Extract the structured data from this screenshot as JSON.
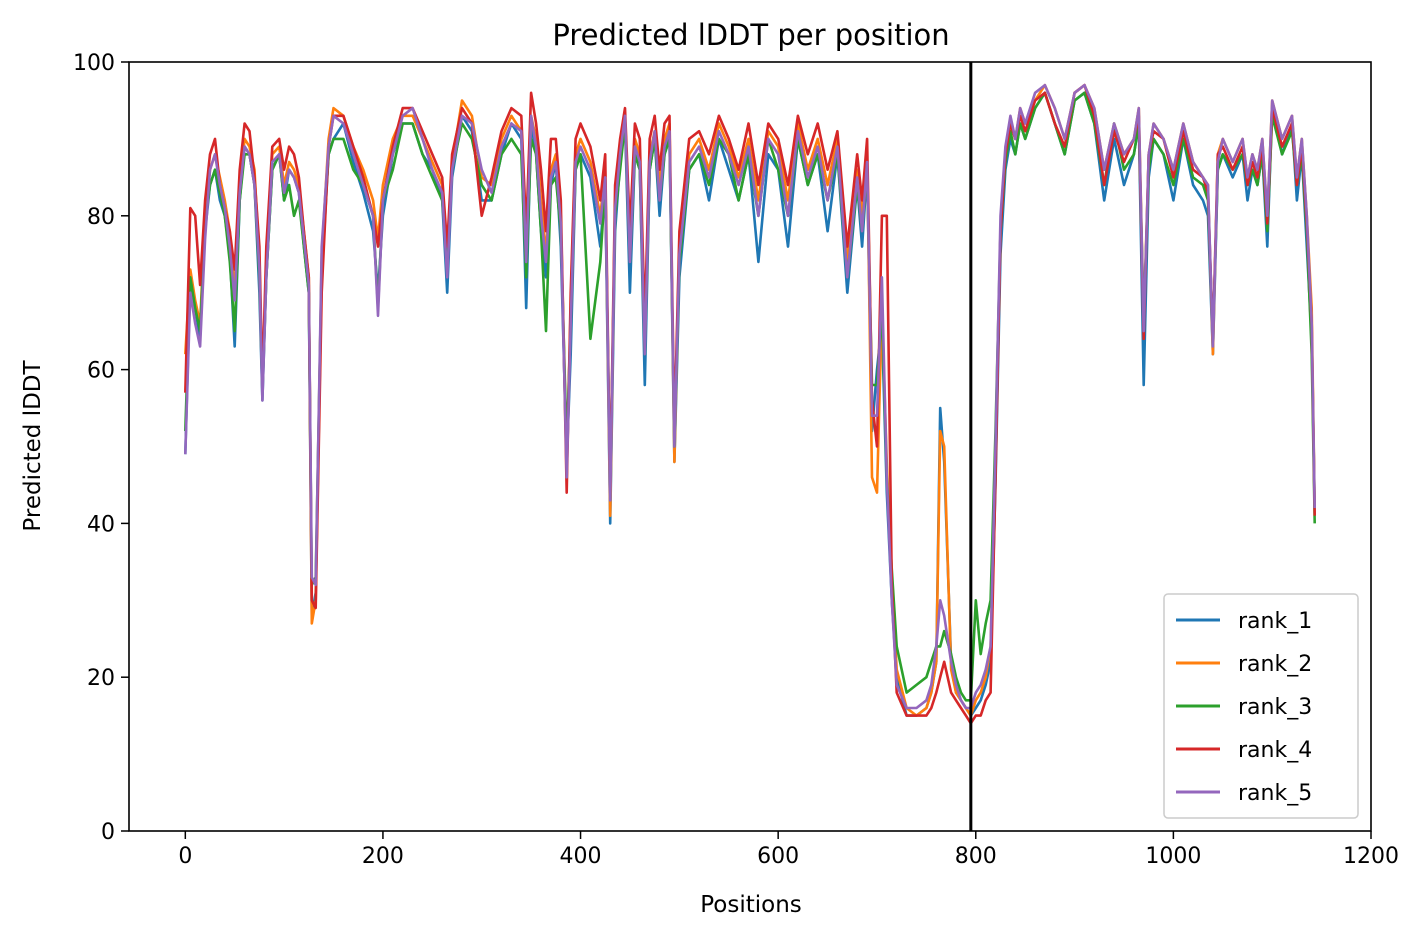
{
  "chart_data": {
    "type": "line",
    "title": "Predicted lDDT per position",
    "xlabel": "Positions",
    "ylabel": "Predicted lDDT",
    "xlim": [
      -57,
      1200
    ],
    "ylim": [
      0,
      100
    ],
    "xticks": [
      0,
      200,
      400,
      600,
      800,
      1000,
      1200
    ],
    "yticks": [
      0,
      20,
      40,
      60,
      80,
      100
    ],
    "grid": false,
    "legend_position": "lower-right",
    "vline_x": 795,
    "colors": {
      "rank_1": "#1f77b4",
      "rank_2": "#ff7f0e",
      "rank_3": "#2ca02c",
      "rank_4": "#d62728",
      "rank_5": "#9467bd",
      "vline": "#000000"
    },
    "x": [
      0,
      5,
      10,
      15,
      20,
      25,
      30,
      35,
      40,
      45,
      50,
      55,
      60,
      65,
      70,
      75,
      78,
      82,
      88,
      95,
      100,
      105,
      110,
      115,
      120,
      125,
      128,
      132,
      138,
      145,
      150,
      160,
      170,
      180,
      190,
      195,
      200,
      210,
      220,
      230,
      240,
      250,
      260,
      265,
      270,
      280,
      290,
      300,
      310,
      320,
      330,
      340,
      345,
      350,
      355,
      360,
      365,
      370,
      375,
      380,
      386,
      390,
      395,
      400,
      410,
      420,
      425,
      430,
      435,
      440,
      445,
      450,
      455,
      460,
      465,
      470,
      475,
      480,
      485,
      490,
      495,
      500,
      510,
      520,
      530,
      540,
      550,
      560,
      570,
      580,
      590,
      600,
      610,
      620,
      630,
      640,
      650,
      660,
      670,
      680,
      685,
      690,
      695,
      700,
      705,
      710,
      715,
      720,
      730,
      740,
      750,
      755,
      760,
      764,
      768,
      775,
      780,
      785,
      790,
      795,
      800,
      805,
      810,
      815,
      820,
      825,
      830,
      835,
      840,
      845,
      850,
      860,
      870,
      880,
      890,
      900,
      910,
      920,
      930,
      940,
      950,
      960,
      965,
      970,
      975,
      980,
      990,
      1000,
      1010,
      1020,
      1030,
      1035,
      1040,
      1045,
      1050,
      1060,
      1070,
      1075,
      1080,
      1085,
      1090,
      1095,
      1100,
      1110,
      1120,
      1125,
      1130,
      1135,
      1140,
      1143
    ],
    "series": [
      {
        "name": "rank_1",
        "values": [
          49,
          72,
          68,
          64,
          78,
          84,
          86,
          82,
          80,
          75,
          63,
          82,
          89,
          88,
          84,
          70,
          56,
          72,
          86,
          88,
          82,
          86,
          85,
          83,
          76,
          70,
          28,
          31,
          72,
          88,
          90,
          92,
          87,
          83,
          78,
          70,
          80,
          88,
          92,
          92,
          88,
          86,
          82,
          70,
          85,
          93,
          91,
          82,
          82,
          88,
          92,
          90,
          68,
          92,
          88,
          78,
          72,
          84,
          87,
          76,
          48,
          62,
          86,
          88,
          85,
          76,
          84,
          40,
          78,
          87,
          92,
          70,
          88,
          86,
          58,
          86,
          90,
          80,
          88,
          90,
          48,
          72,
          86,
          88,
          82,
          90,
          86,
          82,
          88,
          74,
          88,
          86,
          76,
          90,
          84,
          88,
          78,
          88,
          70,
          84,
          76,
          86,
          52,
          60,
          66,
          44,
          30,
          20,
          15,
          15,
          16,
          18,
          22,
          55,
          48,
          22,
          18,
          17,
          16,
          15,
          16,
          17,
          19,
          22,
          45,
          75,
          86,
          90,
          88,
          92,
          90,
          94,
          96,
          92,
          88,
          95,
          96,
          92,
          82,
          90,
          84,
          88,
          92,
          58,
          85,
          90,
          88,
          82,
          90,
          84,
          82,
          80,
          62,
          86,
          88,
          85,
          88,
          82,
          86,
          84,
          88,
          76,
          94,
          88,
          92,
          82,
          88,
          76,
          64,
          42
        ]
      },
      {
        "name": "rank_2",
        "values": [
          62,
          73,
          69,
          66,
          80,
          86,
          88,
          85,
          82,
          78,
          70,
          84,
          90,
          89,
          86,
          74,
          58,
          74,
          88,
          89,
          84,
          87,
          86,
          84,
          78,
          72,
          27,
          30,
          75,
          90,
          94,
          93,
          89,
          86,
          82,
          77,
          84,
          90,
          93,
          93,
          90,
          87,
          84,
          75,
          87,
          95,
          93,
          85,
          84,
          90,
          93,
          91,
          76,
          93,
          90,
          82,
          75,
          86,
          88,
          80,
          48,
          68,
          88,
          90,
          87,
          80,
          86,
          41,
          82,
          89,
          93,
          76,
          90,
          88,
          64,
          88,
          91,
          84,
          90,
          92,
          48,
          76,
          88,
          90,
          86,
          92,
          89,
          85,
          90,
          82,
          91,
          89,
          82,
          92,
          86,
          90,
          84,
          90,
          74,
          86,
          80,
          88,
          46,
          44,
          68,
          48,
          32,
          21,
          16,
          15,
          16,
          18,
          22,
          52,
          50,
          21,
          18,
          17,
          16,
          15,
          17,
          18,
          20,
          24,
          48,
          78,
          88,
          92,
          90,
          94,
          92,
          95,
          97,
          94,
          90,
          96,
          97,
          94,
          86,
          92,
          88,
          90,
          94,
          66,
          88,
          92,
          90,
          86,
          92,
          87,
          85,
          84,
          62,
          88,
          90,
          87,
          90,
          85,
          88,
          86,
          90,
          80,
          95,
          90,
          93,
          85,
          90,
          80,
          68,
          42
        ]
      },
      {
        "name": "rank_3",
        "values": [
          52,
          72,
          68,
          65,
          79,
          84,
          86,
          83,
          80,
          74,
          65,
          82,
          88,
          88,
          84,
          72,
          57,
          72,
          86,
          88,
          82,
          84,
          80,
          82,
          76,
          70,
          32,
          33,
          74,
          88,
          90,
          90,
          86,
          84,
          80,
          68,
          82,
          86,
          92,
          92,
          88,
          85,
          82,
          74,
          86,
          92,
          90,
          84,
          82,
          88,
          90,
          88,
          72,
          90,
          88,
          78,
          65,
          84,
          85,
          78,
          50,
          66,
          86,
          88,
          64,
          74,
          84,
          45,
          80,
          86,
          92,
          74,
          88,
          86,
          62,
          86,
          90,
          82,
          88,
          90,
          50,
          74,
          86,
          88,
          84,
          90,
          88,
          82,
          88,
          80,
          90,
          86,
          80,
          90,
          84,
          88,
          82,
          88,
          72,
          84,
          78,
          86,
          58,
          58,
          68,
          46,
          34,
          24,
          18,
          19,
          20,
          22,
          24,
          24,
          26,
          23,
          20,
          18,
          17,
          17,
          30,
          23,
          27,
          30,
          52,
          78,
          87,
          91,
          88,
          92,
          90,
          94,
          96,
          92,
          88,
          95,
          96,
          92,
          84,
          92,
          86,
          88,
          92,
          66,
          86,
          90,
          88,
          84,
          90,
          85,
          84,
          82,
          64,
          86,
          88,
          86,
          88,
          84,
          86,
          84,
          88,
          78,
          93,
          88,
          91,
          84,
          88,
          78,
          62,
          40
        ]
      },
      {
        "name": "rank_4",
        "values": [
          57,
          81,
          80,
          71,
          82,
          88,
          90,
          84,
          81,
          78,
          73,
          86,
          92,
          91,
          85,
          76,
          58,
          76,
          89,
          90,
          86,
          89,
          88,
          85,
          78,
          72,
          30,
          29,
          70,
          89,
          93,
          93,
          89,
          85,
          80,
          76,
          82,
          89,
          94,
          94,
          91,
          88,
          85,
          76,
          88,
          94,
          92,
          80,
          85,
          91,
          94,
          93,
          78,
          96,
          92,
          86,
          78,
          90,
          90,
          82,
          44,
          70,
          90,
          92,
          89,
          82,
          88,
          44,
          84,
          90,
          94,
          78,
          92,
          90,
          66,
          90,
          93,
          86,
          92,
          93,
          52,
          78,
          90,
          91,
          88,
          93,
          90,
          86,
          92,
          84,
          92,
          90,
          84,
          93,
          88,
          92,
          86,
          91,
          76,
          88,
          82,
          90,
          56,
          50,
          80,
          80,
          32,
          18,
          15,
          15,
          15,
          16,
          18,
          20,
          22,
          18,
          17,
          16,
          15,
          14,
          15,
          15,
          17,
          18,
          46,
          78,
          88,
          92,
          90,
          93,
          91,
          95,
          96,
          92,
          89,
          96,
          97,
          93,
          84,
          91,
          87,
          90,
          93,
          64,
          88,
          91,
          90,
          85,
          91,
          86,
          85,
          83,
          64,
          88,
          89,
          86,
          89,
          84,
          87,
          85,
          89,
          79,
          94,
          89,
          92,
          84,
          89,
          79,
          66,
          41
        ]
      },
      {
        "name": "rank_5",
        "values": [
          49,
          70,
          66,
          63,
          77,
          86,
          88,
          84,
          81,
          76,
          69,
          83,
          89,
          88,
          84,
          73,
          56,
          72,
          87,
          88,
          83,
          86,
          85,
          83,
          77,
          71,
          33,
          32,
          76,
          89,
          93,
          92,
          88,
          84,
          80,
          67,
          82,
          88,
          93,
          94,
          90,
          86,
          83,
          72,
          86,
          93,
          92,
          86,
          83,
          89,
          92,
          91,
          74,
          93,
          89,
          80,
          74,
          85,
          87,
          79,
          46,
          66,
          87,
          89,
          86,
          79,
          85,
          43,
          81,
          88,
          93,
          74,
          89,
          87,
          62,
          87,
          91,
          82,
          89,
          91,
          50,
          75,
          87,
          89,
          85,
          91,
          88,
          84,
          89,
          80,
          90,
          88,
          80,
          91,
          85,
          89,
          82,
          89,
          72,
          85,
          78,
          87,
          54,
          54,
          72,
          46,
          30,
          19,
          16,
          16,
          17,
          19,
          24,
          30,
          28,
          22,
          19,
          17,
          16,
          16,
          18,
          19,
          21,
          24,
          50,
          80,
          89,
          93,
          90,
          94,
          92,
          96,
          97,
          94,
          90,
          96,
          97,
          94,
          86,
          92,
          88,
          90,
          94,
          65,
          88,
          92,
          90,
          86,
          92,
          87,
          85,
          84,
          63,
          87,
          90,
          87,
          90,
          85,
          88,
          86,
          90,
          80,
          95,
          90,
          93,
          85,
          90,
          80,
          66,
          42
        ]
      }
    ]
  }
}
